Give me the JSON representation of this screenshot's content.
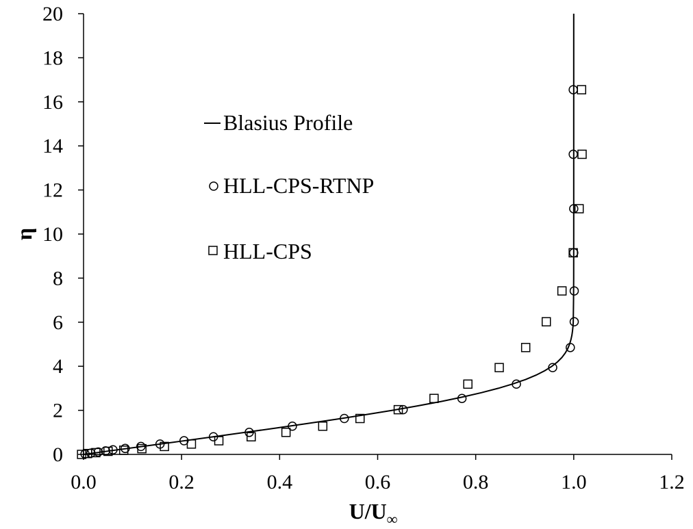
{
  "chart_data": {
    "type": "scatter",
    "title": "",
    "xlabel": "U/U",
    "xlabel_sub": "∞",
    "ylabel": "η",
    "xlim": [
      0.0,
      1.2
    ],
    "ylim": [
      0,
      20
    ],
    "xticks": [
      "0.0",
      "0.2",
      "0.4",
      "0.6",
      "0.8",
      "1.0",
      "1.2"
    ],
    "yticks": [
      "0",
      "2",
      "4",
      "6",
      "8",
      "10",
      "12",
      "14",
      "16",
      "18",
      "20"
    ],
    "grid": false,
    "legend_position": "upper-left inside plot",
    "series": [
      {
        "name": "Blasius Profile",
        "style": "line",
        "color": "#000000",
        "x": [
          0.0,
          0.0664,
          0.1328,
          0.1989,
          0.2647,
          0.3298,
          0.3938,
          0.4563,
          0.5168,
          0.5748,
          0.6298,
          0.6813,
          0.729,
          0.7725,
          0.8115,
          0.846,
          0.8761,
          0.9018,
          0.9233,
          0.9411,
          0.9555,
          0.967,
          0.9759,
          0.9827,
          0.9878,
          0.9915,
          0.9942,
          0.9962,
          0.9975,
          0.9984,
          0.999,
          0.9996,
          0.9999,
          1.0,
          1.0
        ],
        "y": [
          0.0,
          0.2,
          0.4,
          0.6,
          0.8,
          1.0,
          1.2,
          1.4,
          1.6,
          1.8,
          2.0,
          2.2,
          2.4,
          2.6,
          2.8,
          3.0,
          3.2,
          3.4,
          3.6,
          3.8,
          4.0,
          4.2,
          4.4,
          4.6,
          4.8,
          5.0,
          5.2,
          5.4,
          5.6,
          5.8,
          6.0,
          7.0,
          8.0,
          10.0,
          20.0
        ]
      },
      {
        "name": "HLL-CPS-RTNP",
        "style": "circle",
        "color": "#000000",
        "points": [
          [
            0.003,
            0.02
          ],
          [
            0.015,
            0.06
          ],
          [
            0.03,
            0.11
          ],
          [
            0.045,
            0.16
          ],
          [
            0.06,
            0.21
          ],
          [
            0.085,
            0.27
          ],
          [
            0.117,
            0.36
          ],
          [
            0.156,
            0.47
          ],
          [
            0.205,
            0.62
          ],
          [
            0.265,
            0.8
          ],
          [
            0.338,
            1.0
          ],
          [
            0.426,
            1.28
          ],
          [
            0.532,
            1.63
          ],
          [
            0.652,
            2.03
          ],
          [
            0.772,
            2.54
          ],
          [
            0.883,
            3.19
          ],
          [
            0.957,
            3.94
          ],
          [
            0.993,
            4.85
          ],
          [
            1.001,
            6.02
          ],
          [
            1.001,
            7.42
          ],
          [
            1.0,
            9.15
          ],
          [
            1.0,
            11.15
          ],
          [
            0.999,
            13.62
          ],
          [
            0.999,
            16.55
          ]
        ]
      },
      {
        "name": "HLL-CPS",
        "style": "square",
        "color": "#000000",
        "points": [
          [
            -0.004,
            0.0
          ],
          [
            0.008,
            0.04
          ],
          [
            0.025,
            0.08
          ],
          [
            0.05,
            0.14
          ],
          [
            0.082,
            0.19
          ],
          [
            0.119,
            0.26
          ],
          [
            0.165,
            0.36
          ],
          [
            0.22,
            0.47
          ],
          [
            0.276,
            0.62
          ],
          [
            0.342,
            0.8
          ],
          [
            0.413,
            1.0
          ],
          [
            0.488,
            1.28
          ],
          [
            0.564,
            1.63
          ],
          [
            0.642,
            2.03
          ],
          [
            0.715,
            2.54
          ],
          [
            0.784,
            3.19
          ],
          [
            0.848,
            3.94
          ],
          [
            0.902,
            4.85
          ],
          [
            0.944,
            6.02
          ],
          [
            0.976,
            7.42
          ],
          [
            0.999,
            9.15
          ],
          [
            1.011,
            11.15
          ],
          [
            1.017,
            13.62
          ],
          [
            1.016,
            16.55
          ]
        ]
      }
    ]
  }
}
